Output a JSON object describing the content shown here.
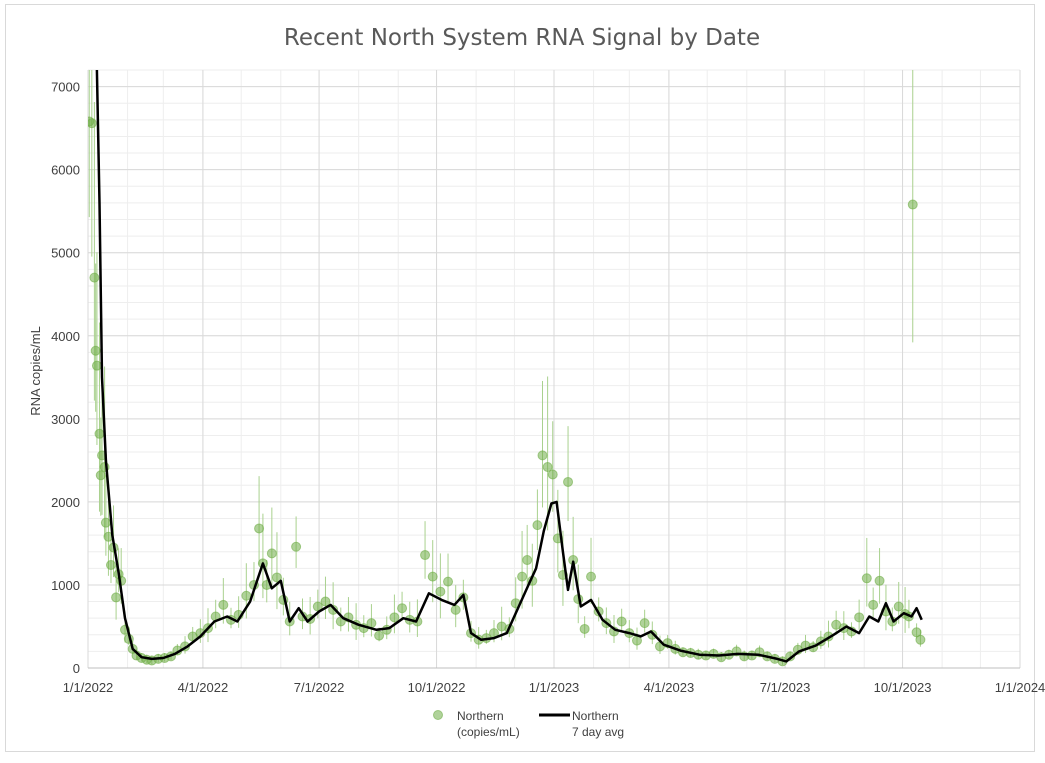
{
  "chart_data": {
    "type": "scatter",
    "title": "Recent North System RNA Signal by Date",
    "xlabel": "",
    "ylabel": "RNA copies/mL",
    "x_ticks": [
      "1/1/2022",
      "4/1/2022",
      "7/1/2022",
      "10/1/2022",
      "1/1/2023",
      "4/1/2023",
      "7/1/2023",
      "10/1/2023",
      "1/1/2024"
    ],
    "y_ticks": [
      "0",
      "1000",
      "2000",
      "3000",
      "4000",
      "5000",
      "6000",
      "7000"
    ],
    "xlim": [
      "2022-01-01",
      "2024-01-01"
    ],
    "ylim": [
      0,
      7200
    ],
    "grid": true,
    "legend_position": "bottom",
    "colors": {
      "points": "#70ad47",
      "average_line": "#000000",
      "error_bars": "#a9d18e"
    },
    "series": [
      {
        "name": "Northern\n(copies/mL)",
        "kind": "scatter-with-error-bars",
        "points": [
          [
            "2022-01-02",
            6580
          ],
          [
            "2022-01-04",
            6560
          ],
          [
            "2022-01-06",
            4700
          ],
          [
            "2022-01-07",
            3820
          ],
          [
            "2022-01-08",
            3640
          ],
          [
            "2022-01-10",
            2820
          ],
          [
            "2022-01-11",
            2320
          ],
          [
            "2022-01-12",
            2560
          ],
          [
            "2022-01-14",
            2420
          ],
          [
            "2022-01-15",
            1750
          ],
          [
            "2022-01-17",
            1580
          ],
          [
            "2022-01-19",
            1240
          ],
          [
            "2022-01-21",
            1450
          ],
          [
            "2022-01-23",
            850
          ],
          [
            "2022-01-25",
            1130
          ],
          [
            "2022-01-27",
            1050
          ],
          [
            "2022-01-30",
            460
          ],
          [
            "2022-02-02",
            350
          ],
          [
            "2022-02-05",
            230
          ],
          [
            "2022-02-08",
            150
          ],
          [
            "2022-02-12",
            120
          ],
          [
            "2022-02-16",
            100
          ],
          [
            "2022-02-20",
            90
          ],
          [
            "2022-02-25",
            110
          ],
          [
            "2022-03-02",
            120
          ],
          [
            "2022-03-07",
            140
          ],
          [
            "2022-03-12",
            210
          ],
          [
            "2022-03-18",
            260
          ],
          [
            "2022-03-24",
            380
          ],
          [
            "2022-03-30",
            420
          ],
          [
            "2022-04-05",
            480
          ],
          [
            "2022-04-11",
            620
          ],
          [
            "2022-04-17",
            760
          ],
          [
            "2022-04-23",
            580
          ],
          [
            "2022-04-29",
            640
          ],
          [
            "2022-05-05",
            870
          ],
          [
            "2022-05-11",
            1000
          ],
          [
            "2022-05-15",
            1680
          ],
          [
            "2022-05-18",
            1260
          ],
          [
            "2022-05-21",
            1000
          ],
          [
            "2022-05-25",
            1380
          ],
          [
            "2022-05-29",
            1090
          ],
          [
            "2022-06-03",
            820
          ],
          [
            "2022-06-08",
            560
          ],
          [
            "2022-06-13",
            1460
          ],
          [
            "2022-06-18",
            620
          ],
          [
            "2022-06-24",
            590
          ],
          [
            "2022-06-30",
            740
          ],
          [
            "2022-07-06",
            800
          ],
          [
            "2022-07-12",
            700
          ],
          [
            "2022-07-18",
            560
          ],
          [
            "2022-07-24",
            610
          ],
          [
            "2022-07-30",
            520
          ],
          [
            "2022-08-05",
            480
          ],
          [
            "2022-08-11",
            540
          ],
          [
            "2022-08-17",
            390
          ],
          [
            "2022-08-23",
            460
          ],
          [
            "2022-08-29",
            610
          ],
          [
            "2022-09-04",
            720
          ],
          [
            "2022-09-10",
            580
          ],
          [
            "2022-09-16",
            560
          ],
          [
            "2022-09-22",
            1360
          ],
          [
            "2022-09-28",
            1100
          ],
          [
            "2022-10-04",
            920
          ],
          [
            "2022-10-10",
            1040
          ],
          [
            "2022-10-16",
            700
          ],
          [
            "2022-10-22",
            850
          ],
          [
            "2022-10-28",
            420
          ],
          [
            "2022-11-03",
            340
          ],
          [
            "2022-11-09",
            360
          ],
          [
            "2022-11-15",
            420
          ],
          [
            "2022-11-21",
            500
          ],
          [
            "2022-11-27",
            470
          ],
          [
            "2022-12-02",
            780
          ],
          [
            "2022-12-07",
            1100
          ],
          [
            "2022-12-11",
            1300
          ],
          [
            "2022-12-15",
            1050
          ],
          [
            "2022-12-19",
            1720
          ],
          [
            "2022-12-23",
            2560
          ],
          [
            "2022-12-27",
            2420
          ],
          [
            "2022-12-31",
            2330
          ],
          [
            "2023-01-04",
            1560
          ],
          [
            "2023-01-08",
            1120
          ],
          [
            "2023-01-12",
            2240
          ],
          [
            "2023-01-16",
            1300
          ],
          [
            "2023-01-20",
            830
          ],
          [
            "2023-01-25",
            470
          ],
          [
            "2023-01-30",
            1100
          ],
          [
            "2023-02-05",
            680
          ],
          [
            "2023-02-11",
            540
          ],
          [
            "2023-02-17",
            440
          ],
          [
            "2023-02-23",
            560
          ],
          [
            "2023-03-01",
            420
          ],
          [
            "2023-03-07",
            330
          ],
          [
            "2023-03-13",
            540
          ],
          [
            "2023-03-19",
            400
          ],
          [
            "2023-03-25",
            260
          ],
          [
            "2023-03-31",
            300
          ],
          [
            "2023-04-06",
            230
          ],
          [
            "2023-04-12",
            190
          ],
          [
            "2023-04-18",
            180
          ],
          [
            "2023-04-24",
            160
          ],
          [
            "2023-04-30",
            150
          ],
          [
            "2023-05-06",
            170
          ],
          [
            "2023-05-12",
            130
          ],
          [
            "2023-05-18",
            160
          ],
          [
            "2023-05-24",
            200
          ],
          [
            "2023-05-30",
            140
          ],
          [
            "2023-06-05",
            150
          ],
          [
            "2023-06-11",
            190
          ],
          [
            "2023-06-17",
            140
          ],
          [
            "2023-06-23",
            110
          ],
          [
            "2023-06-29",
            80
          ],
          [
            "2023-07-05",
            140
          ],
          [
            "2023-07-11",
            220
          ],
          [
            "2023-07-17",
            270
          ],
          [
            "2023-07-23",
            250
          ],
          [
            "2023-07-29",
            320
          ],
          [
            "2023-08-04",
            380
          ],
          [
            "2023-08-10",
            520
          ],
          [
            "2023-08-16",
            480
          ],
          [
            "2023-08-22",
            440
          ],
          [
            "2023-08-28",
            610
          ],
          [
            "2023-09-03",
            1080
          ],
          [
            "2023-09-08",
            760
          ],
          [
            "2023-09-13",
            1050
          ],
          [
            "2023-09-18",
            680
          ],
          [
            "2023-09-23",
            560
          ],
          [
            "2023-09-28",
            740
          ],
          [
            "2023-10-03",
            650
          ],
          [
            "2023-10-06",
            620
          ],
          [
            "2023-10-09",
            5580
          ],
          [
            "2023-10-12",
            430
          ],
          [
            "2023-10-15",
            340
          ]
        ]
      },
      {
        "name": "Northern\n7 day avg",
        "kind": "line",
        "points": [
          [
            "2022-01-08",
            7200
          ],
          [
            "2022-01-10",
            5600
          ],
          [
            "2022-01-12",
            3500
          ],
          [
            "2022-01-15",
            2500
          ],
          [
            "2022-01-20",
            1600
          ],
          [
            "2022-01-25",
            1150
          ],
          [
            "2022-01-30",
            600
          ],
          [
            "2022-02-05",
            230
          ],
          [
            "2022-02-12",
            130
          ],
          [
            "2022-02-20",
            110
          ],
          [
            "2022-03-01",
            120
          ],
          [
            "2022-03-10",
            170
          ],
          [
            "2022-03-20",
            260
          ],
          [
            "2022-03-30",
            380
          ],
          [
            "2022-04-10",
            560
          ],
          [
            "2022-04-20",
            620
          ],
          [
            "2022-04-28",
            560
          ],
          [
            "2022-05-08",
            800
          ],
          [
            "2022-05-18",
            1260
          ],
          [
            "2022-05-25",
            960
          ],
          [
            "2022-06-01",
            1050
          ],
          [
            "2022-06-08",
            560
          ],
          [
            "2022-06-15",
            720
          ],
          [
            "2022-06-22",
            560
          ],
          [
            "2022-07-01",
            680
          ],
          [
            "2022-07-10",
            760
          ],
          [
            "2022-07-20",
            600
          ],
          [
            "2022-08-01",
            520
          ],
          [
            "2022-08-15",
            460
          ],
          [
            "2022-08-25",
            480
          ],
          [
            "2022-09-05",
            600
          ],
          [
            "2022-09-15",
            560
          ],
          [
            "2022-09-25",
            900
          ],
          [
            "2022-10-05",
            820
          ],
          [
            "2022-10-15",
            760
          ],
          [
            "2022-10-22",
            880
          ],
          [
            "2022-10-28",
            420
          ],
          [
            "2022-11-05",
            340
          ],
          [
            "2022-11-15",
            360
          ],
          [
            "2022-11-25",
            420
          ],
          [
            "2022-12-05",
            760
          ],
          [
            "2022-12-12",
            1000
          ],
          [
            "2022-12-18",
            1200
          ],
          [
            "2022-12-24",
            1650
          ],
          [
            "2022-12-30",
            1980
          ],
          [
            "2023-01-03",
            2000
          ],
          [
            "2023-01-08",
            1400
          ],
          [
            "2023-01-12",
            940
          ],
          [
            "2023-01-16",
            1280
          ],
          [
            "2023-01-22",
            740
          ],
          [
            "2023-01-30",
            820
          ],
          [
            "2023-02-08",
            580
          ],
          [
            "2023-02-18",
            460
          ],
          [
            "2023-03-01",
            420
          ],
          [
            "2023-03-10",
            380
          ],
          [
            "2023-03-18",
            440
          ],
          [
            "2023-03-28",
            280
          ],
          [
            "2023-04-10",
            210
          ],
          [
            "2023-04-25",
            160
          ],
          [
            "2023-05-10",
            150
          ],
          [
            "2023-05-25",
            170
          ],
          [
            "2023-06-10",
            160
          ],
          [
            "2023-06-25",
            110
          ],
          [
            "2023-07-02",
            80
          ],
          [
            "2023-07-12",
            200
          ],
          [
            "2023-07-25",
            270
          ],
          [
            "2023-08-08",
            400
          ],
          [
            "2023-08-18",
            500
          ],
          [
            "2023-08-28",
            420
          ],
          [
            "2023-09-05",
            620
          ],
          [
            "2023-09-12",
            560
          ],
          [
            "2023-09-18",
            780
          ],
          [
            "2023-09-24",
            560
          ],
          [
            "2023-10-02",
            660
          ],
          [
            "2023-10-08",
            620
          ],
          [
            "2023-10-12",
            720
          ],
          [
            "2023-10-16",
            580
          ]
        ]
      }
    ]
  }
}
